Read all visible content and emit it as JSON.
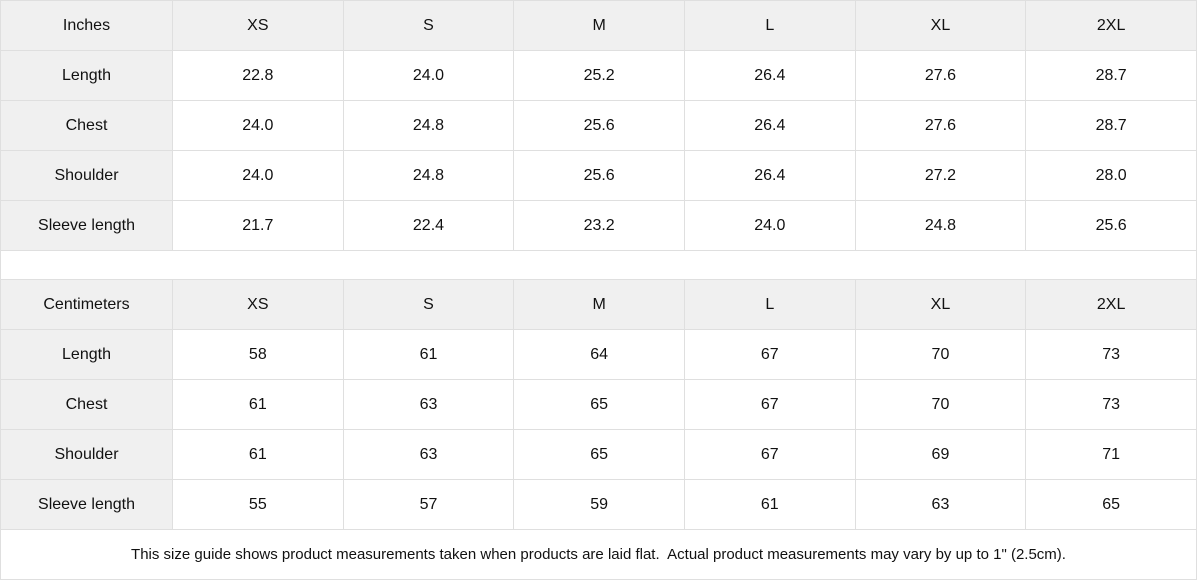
{
  "tables": [
    {
      "unit_label": "Inches",
      "sizes": [
        "XS",
        "S",
        "M",
        "L",
        "XL",
        "2XL"
      ],
      "rows": [
        {
          "label": "Length",
          "values": [
            "22.8",
            "24.0",
            "25.2",
            "26.4",
            "27.6",
            "28.7"
          ]
        },
        {
          "label": "Chest",
          "values": [
            "24.0",
            "24.8",
            "25.6",
            "26.4",
            "27.6",
            "28.7"
          ]
        },
        {
          "label": "Shoulder",
          "values": [
            "24.0",
            "24.8",
            "25.6",
            "26.4",
            "27.2",
            "28.0"
          ]
        },
        {
          "label": "Sleeve length",
          "values": [
            "21.7",
            "22.4",
            "23.2",
            "24.0",
            "24.8",
            "25.6"
          ]
        }
      ]
    },
    {
      "unit_label": "Centimeters",
      "sizes": [
        "XS",
        "S",
        "M",
        "L",
        "XL",
        "2XL"
      ],
      "rows": [
        {
          "label": "Length",
          "values": [
            "58",
            "61",
            "64",
            "67",
            "70",
            "73"
          ]
        },
        {
          "label": "Chest",
          "values": [
            "61",
            "63",
            "65",
            "67",
            "70",
            "73"
          ]
        },
        {
          "label": "Shoulder",
          "values": [
            "61",
            "63",
            "65",
            "67",
            "69",
            "71"
          ]
        },
        {
          "label": "Sleeve length",
          "values": [
            "55",
            "57",
            "59",
            "61",
            "63",
            "65"
          ]
        }
      ]
    }
  ],
  "footer": {
    "note": "This size guide shows product measurements taken when products are laid flat.  Actual product measurements may vary by up to 1\" (2.5cm)."
  },
  "colors": {
    "header_bg": "#f0f0f0",
    "border": "#dfdfdf",
    "text": "#111111",
    "bg": "#ffffff"
  }
}
